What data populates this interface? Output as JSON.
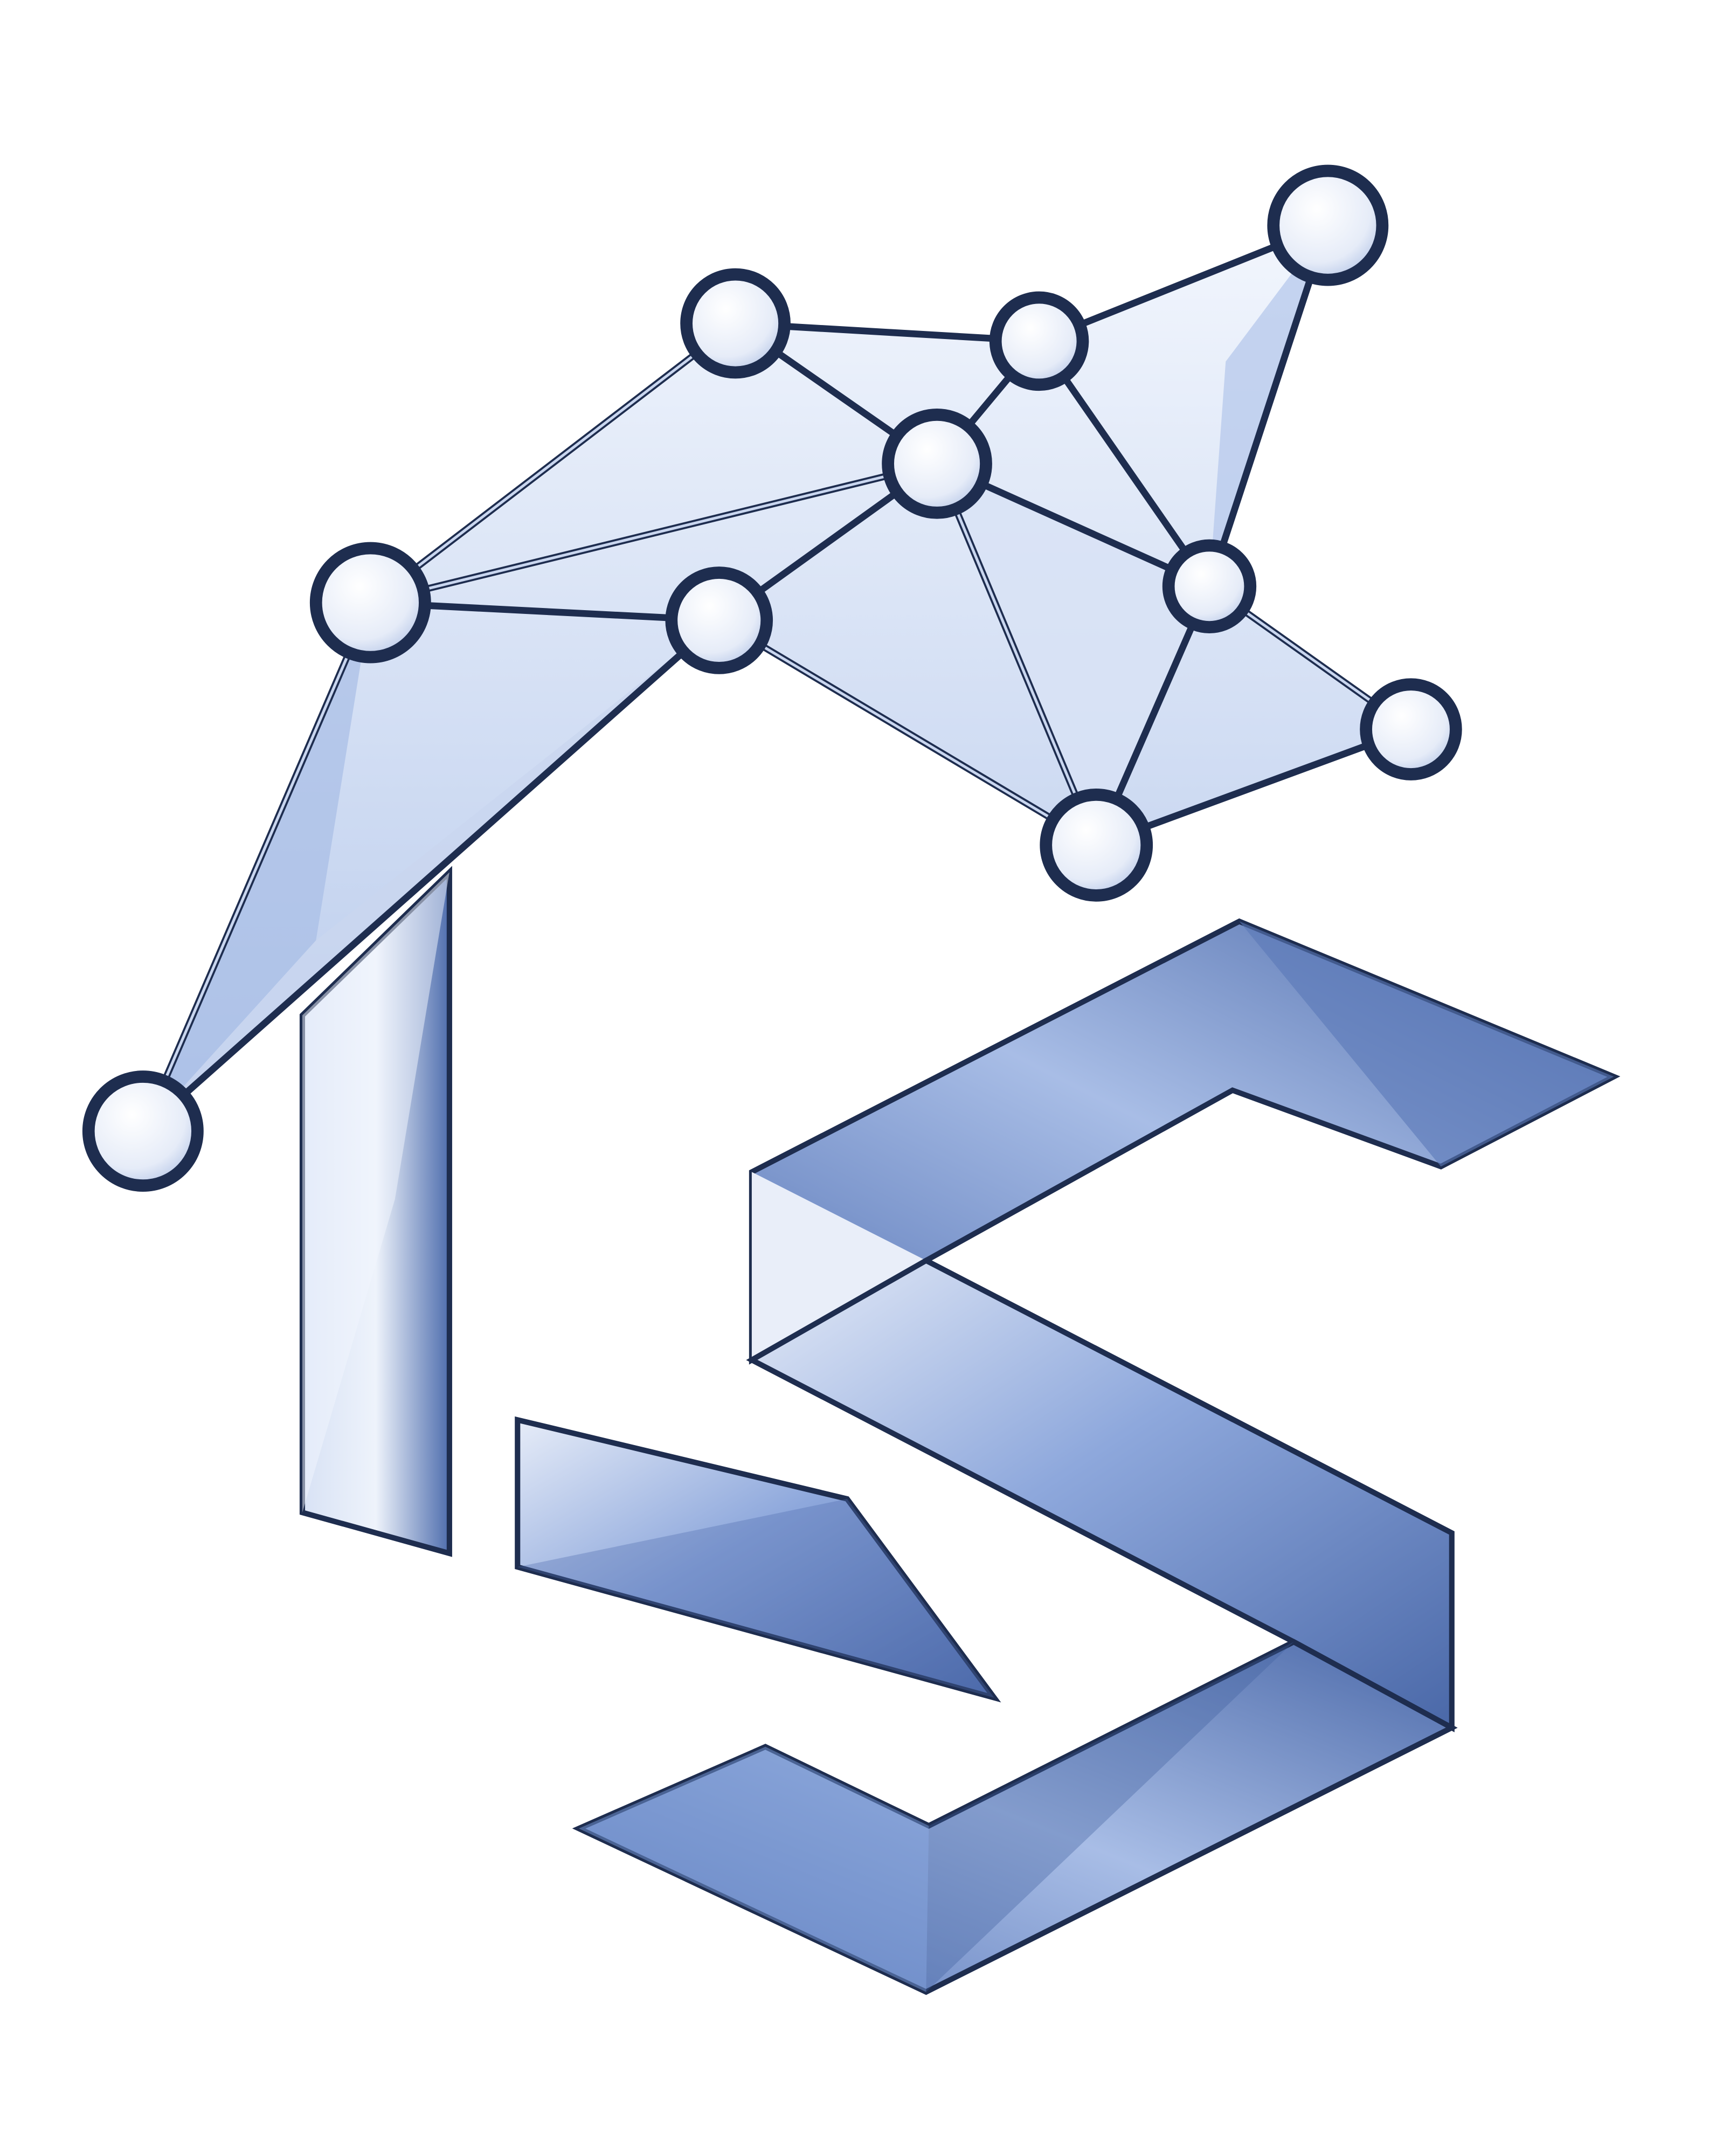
{
  "logo": {
    "description_icon": "network-house-ls-logo-icon",
    "colors": {
      "outline": "#1e2d4f",
      "blue_dark": "#3f5f9f",
      "blue_mid": "#6f8fcd",
      "blue_light": "#c9d6ef",
      "node_fill": "#eef2fb",
      "background": "#ffffff"
    }
  }
}
